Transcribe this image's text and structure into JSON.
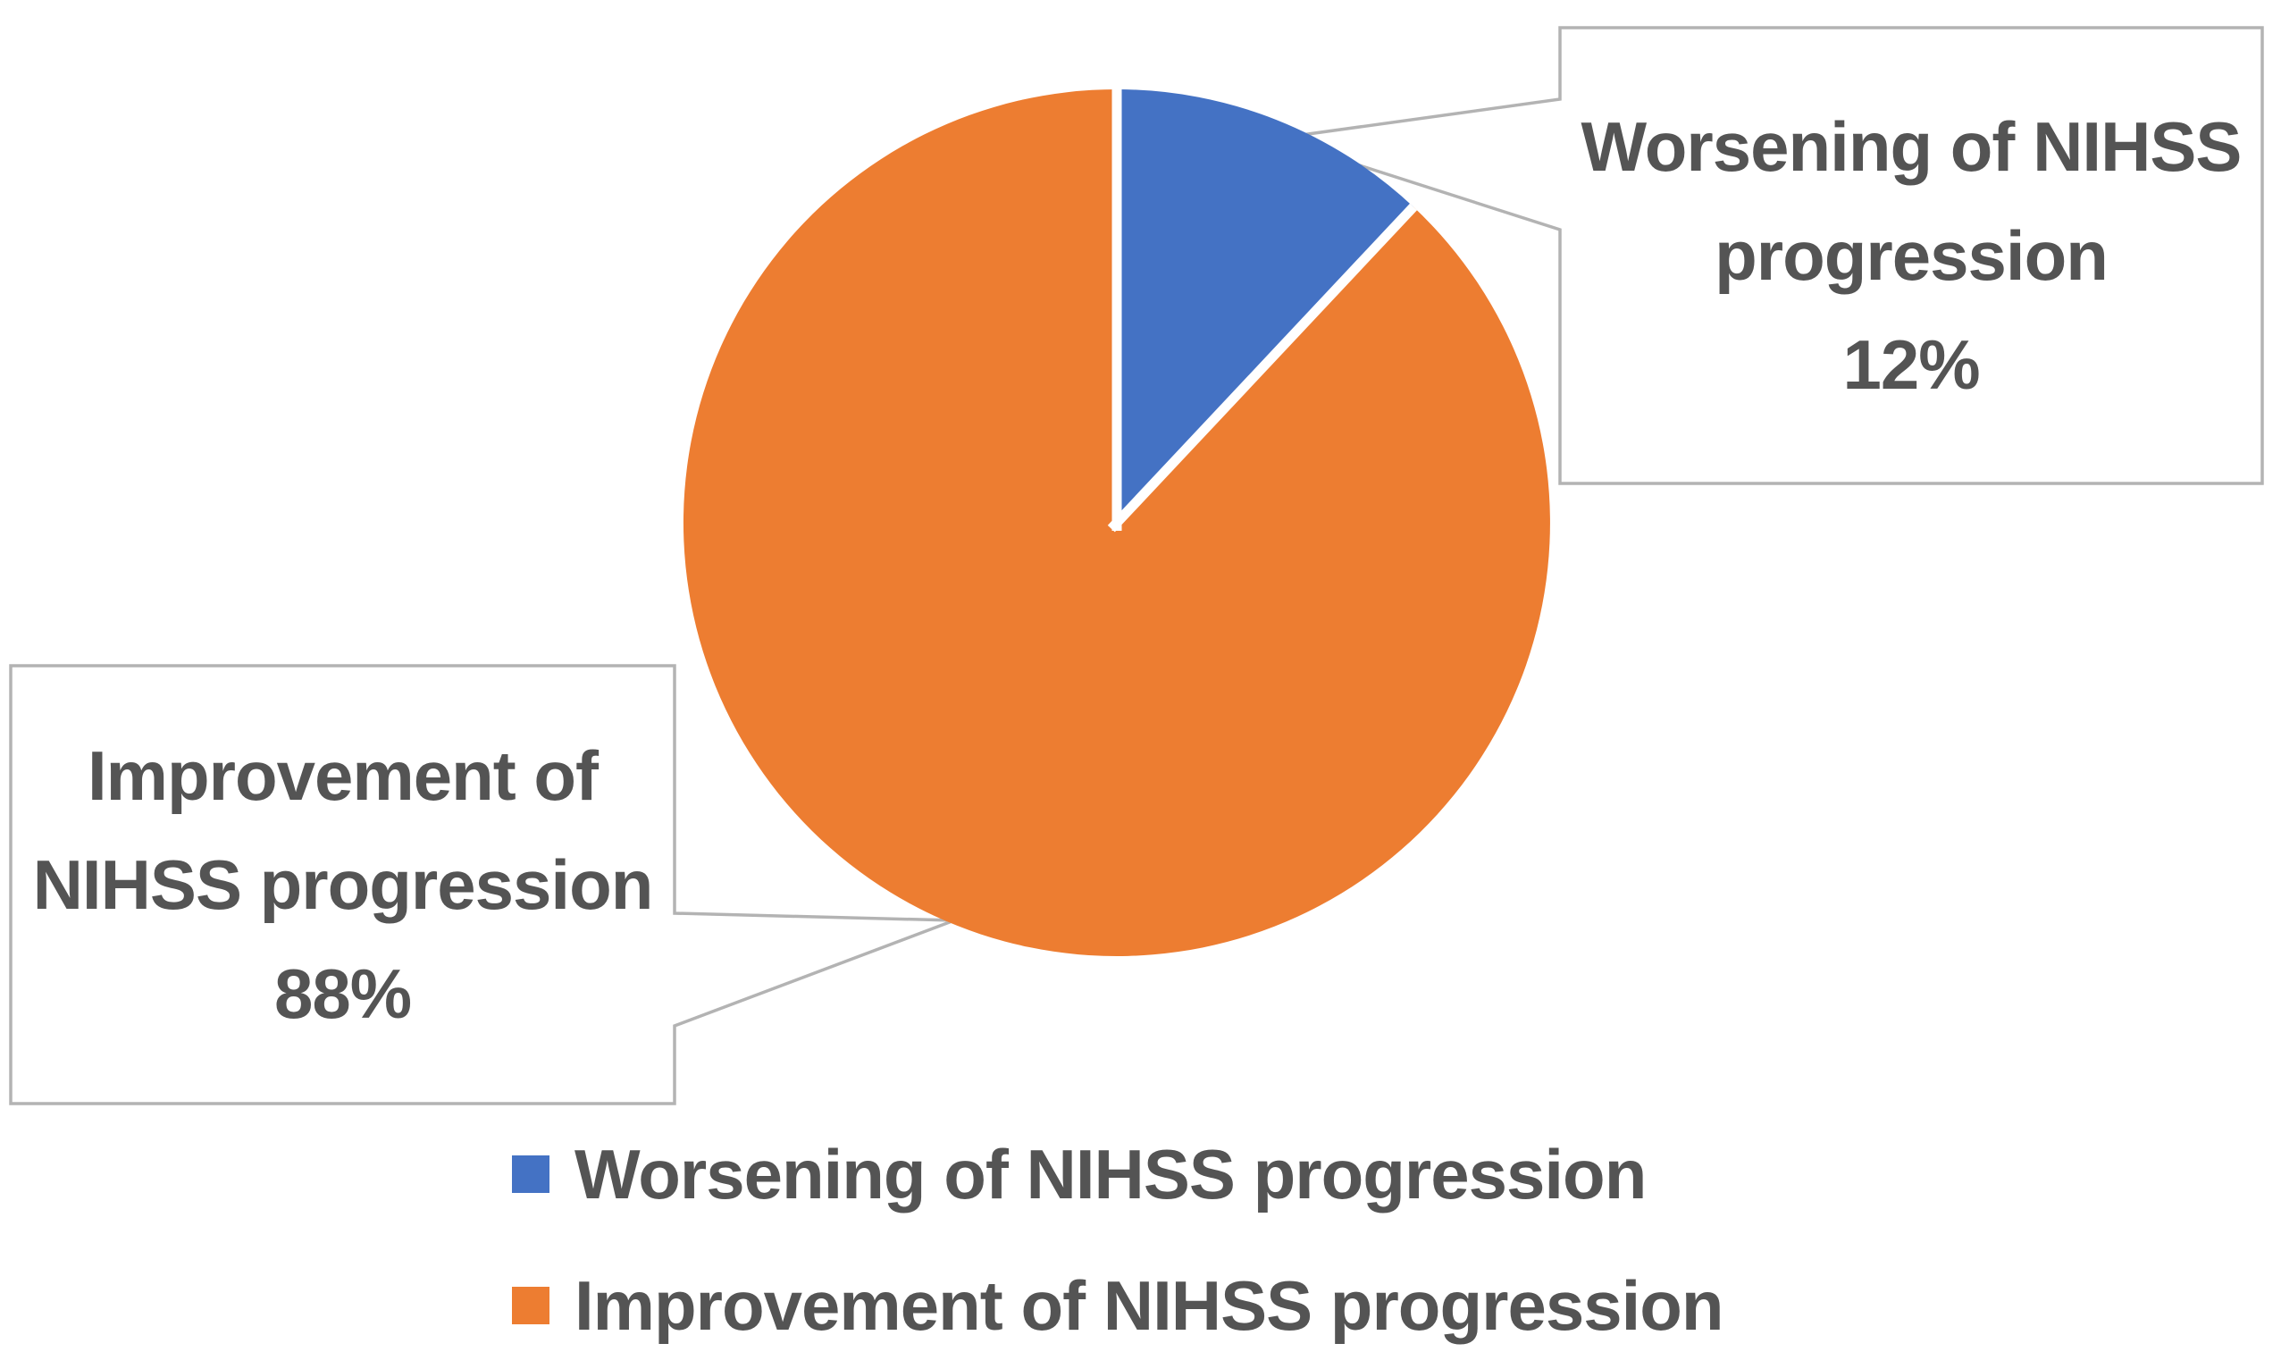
{
  "chart_data": {
    "type": "pie",
    "title": "",
    "slices": [
      {
        "label": "Worsening of NIHSS progression",
        "value": 12,
        "percent_label": "12%",
        "color": "#4472C4"
      },
      {
        "label": "Improvement of NIHSS progression",
        "value": 88,
        "percent_label": "88%",
        "color": "#ED7D31"
      }
    ],
    "start_angle_deg": 0,
    "direction": "clockwise",
    "legend_position": "bottom",
    "annotations": [
      "Worsening of NIHSS progression 12%",
      "Improvement of NIHSS progression 88%"
    ]
  },
  "callouts": {
    "worsening": {
      "lines": [
        "Worsening of NIHSS",
        "progression",
        "12%"
      ]
    },
    "improvement": {
      "lines": [
        "Improvement of",
        "NIHSS progression",
        "88%"
      ]
    }
  },
  "legend": {
    "items": [
      {
        "label": "Worsening of NIHSS progression",
        "color": "#4472C4"
      },
      {
        "label": "Improvement of NIHSS progression",
        "color": "#ED7D31"
      }
    ]
  },
  "colors": {
    "text": "#545454",
    "callout_border": "#b3b3b3",
    "slice_divider": "#ffffff",
    "background": "#ffffff"
  }
}
